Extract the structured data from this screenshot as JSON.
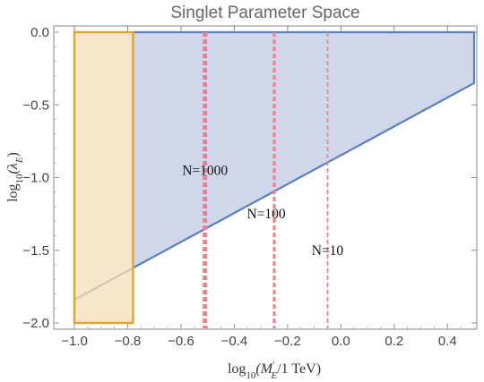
{
  "chart_data": {
    "type": "area",
    "title": "Singlet Parameter Space",
    "xlabel_parts": {
      "prefix": "log",
      "sub": "10",
      "open": "(M",
      "primesym": "′",
      "msub": "E",
      "close": "/1 TeV)"
    },
    "ylabel_parts": {
      "prefix": "log",
      "sub": "10",
      "open": "(λ",
      "lsub": "E",
      "close": ")"
    },
    "xlim": [
      -1.0,
      0.5
    ],
    "ylim": [
      -2.0,
      0.0
    ],
    "xticks": [
      -1.0,
      -0.8,
      -0.6,
      -0.4,
      -0.2,
      0.0,
      0.2,
      0.4
    ],
    "xtick_labels": [
      "−1.0",
      "−0.8",
      "−0.6",
      "−0.4",
      "−0.2",
      "0.0",
      "0.2",
      "0.4"
    ],
    "yticks": [
      0.0,
      -0.5,
      -1.0,
      -1.5,
      -2.0
    ],
    "ytick_labels": [
      "0.0",
      "−0.5",
      "−1.0",
      "−1.5",
      "−2.0"
    ],
    "grid": false,
    "regions": [
      {
        "name": "",
        "fill": "#cfd8ea",
        "stroke": "#5b7fb8",
        "polygon": [
          [
            -1.0,
            -1.84
          ],
          [
            0.5,
            -0.35
          ],
          [
            0.5,
            0.0
          ],
          [
            -0.78,
            0.0
          ],
          [
            -0.78,
            -1.62
          ]
        ]
      },
      {
        "name": "",
        "fill": "#f5ddb5",
        "stroke": "#e0a33a",
        "rect": {
          "x": [
            -1.0,
            -0.78
          ],
          "y": [
            -2.0,
            0.0
          ]
        }
      }
    ],
    "vertical_lines": [
      {
        "x": -0.51,
        "label": "N=1000",
        "color": "#ef8090",
        "dash": "thick"
      },
      {
        "x": -0.25,
        "label": "N=100",
        "color": "#ef8090",
        "dash": "medium"
      },
      {
        "x": -0.05,
        "label": "N=10",
        "color": "#ef8090",
        "dash": "thin"
      }
    ],
    "annotations": [
      {
        "text": "N=1000",
        "x": -0.51,
        "y": -0.95
      },
      {
        "text": "N=100",
        "x": -0.28,
        "y": -1.25
      },
      {
        "text": "N=10",
        "x": -0.05,
        "y": -1.5
      }
    ]
  }
}
